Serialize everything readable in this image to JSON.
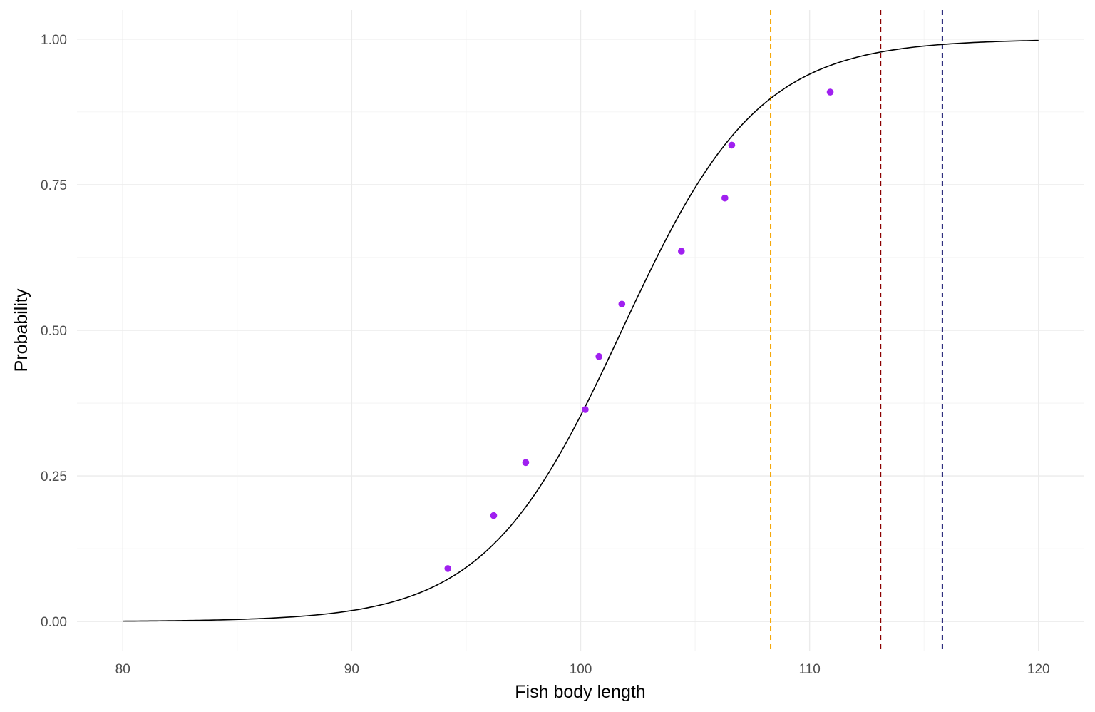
{
  "chart_data": {
    "type": "scatter",
    "title": "",
    "xlabel": "Fish body length",
    "ylabel": "Probability",
    "xlim": [
      78,
      122
    ],
    "ylim": [
      -0.05,
      1.05
    ],
    "x_ticks": [
      80,
      90,
      100,
      110,
      120
    ],
    "x_tick_labels": [
      "80",
      "90",
      "100",
      "110",
      "120"
    ],
    "y_ticks": [
      0,
      0.25,
      0.5,
      0.75,
      1.0
    ],
    "y_tick_labels": [
      "0.00",
      "0.25",
      "0.50",
      "0.75",
      "1.00"
    ],
    "grid": true,
    "legend": "none",
    "points": {
      "color": "#a020f0",
      "x": [
        94.2,
        96.2,
        97.6,
        100.2,
        100.8,
        101.8,
        104.4,
        106.3,
        106.6,
        110.9
      ],
      "y": [
        0.091,
        0.182,
        0.273,
        0.364,
        0.455,
        0.545,
        0.636,
        0.727,
        0.818,
        0.909
      ]
    },
    "curve": {
      "type": "logistic",
      "color": "#000000",
      "x_range": [
        80,
        120
      ],
      "midpoint": 101.8,
      "slope": 0.335
    },
    "vlines": [
      {
        "x": 108.3,
        "color": "#f5a500"
      },
      {
        "x": 113.1,
        "color": "#8b0000"
      },
      {
        "x": 115.8,
        "color": "#191970"
      }
    ]
  }
}
